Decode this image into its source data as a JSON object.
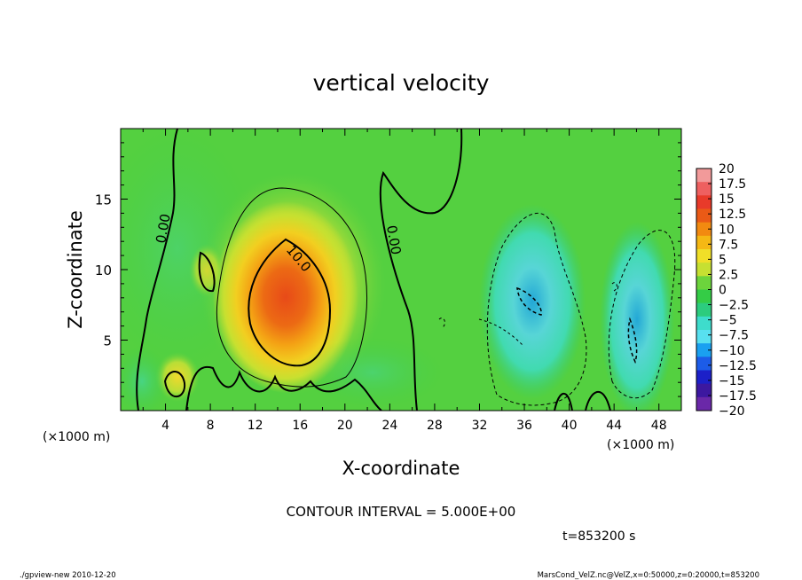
{
  "chart_data": {
    "type": "heatmap",
    "title": "vertical velocity",
    "xlabel": "X-coordinate",
    "ylabel": "Z-coordinate",
    "x_unit_left": "(×1000 m)",
    "x_unit_right": "(×1000 m)",
    "xlim": [
      0,
      50
    ],
    "ylim": [
      0,
      20
    ],
    "x_ticks": [
      4,
      8,
      12,
      16,
      20,
      24,
      28,
      32,
      36,
      40,
      44,
      48
    ],
    "y_ticks": [
      5,
      10,
      15
    ],
    "colorbar": {
      "labels": [
        "20",
        "17.5",
        "15",
        "12.5",
        "10",
        "7.5",
        "5",
        "2.5",
        "0",
        "−2.5",
        "−5",
        "−7.5",
        "−10",
        "−12.5",
        "−15",
        "−17.5",
        "−20"
      ],
      "colors": [
        "#f29a9a",
        "#ee6060",
        "#e83a2a",
        "#ea5a16",
        "#f28a10",
        "#f5b814",
        "#f0df28",
        "#c6e032",
        "#6cd43c",
        "#34cc46",
        "#2ccc7e",
        "#3edccc",
        "#58e0f0",
        "#1aa0f0",
        "#1c5ce8",
        "#1c20c8",
        "#3c18a0",
        "#6a28a8"
      ]
    },
    "contour_labels": [
      "0.00",
      "10.0",
      "0.00"
    ],
    "contour_interval": "CONTOUR INTERVAL = 5.000E+00",
    "time": "t=853200 s",
    "footer_left": "./gpview-new  2010-12-20",
    "footer_right": "MarsCond_VelZ.nc@VelZ,x=0:50000,z=0:20000,t=853200",
    "features": [
      {
        "kind": "updraft",
        "x": 15.5,
        "z": 7.5,
        "peak": 12.5
      },
      {
        "kind": "downdraft",
        "x": 36.5,
        "z": 8.0,
        "peak": -7.5
      },
      {
        "kind": "downdraft",
        "x": 45.5,
        "z": 5.0,
        "peak": -7.5
      }
    ]
  }
}
